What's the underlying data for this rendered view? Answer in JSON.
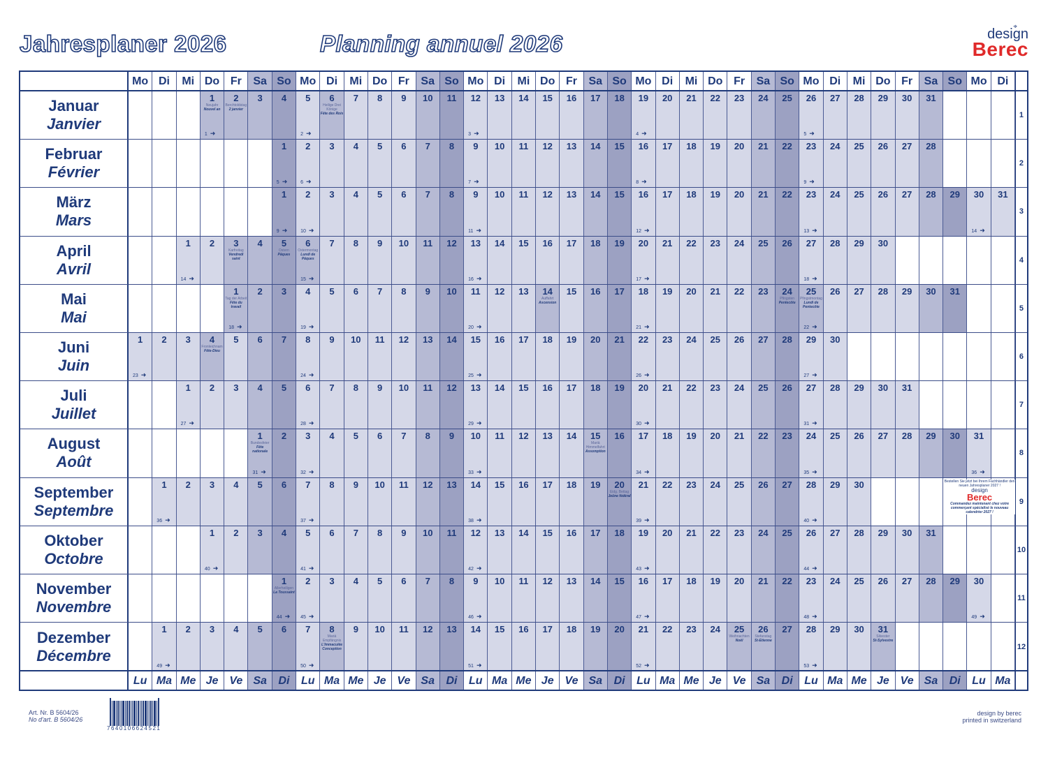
{
  "header": {
    "title_de": "Jahresplaner 2026",
    "title_fr": "Planning annuel 2026",
    "logo_design": "design",
    "logo_brand": "Berec"
  },
  "colors": {
    "navy": "#1f3a7a",
    "weekday_fill": "#d5d8e8",
    "saturday_fill": "#b6bad4",
    "sunday_fill": "#9ca1c2",
    "holiday_fill": "#b6bad4",
    "brand_red": "#e02a2a"
  },
  "weekdays_de": [
    "Mo",
    "Di",
    "Mi",
    "Do",
    "Fr",
    "Sa",
    "So"
  ],
  "weekdays_fr": [
    "Lu",
    "Ma",
    "Me",
    "Je",
    "Ve",
    "Sa",
    "Di"
  ],
  "columns": 37,
  "months": [
    {
      "de": "Januar",
      "fr": "Janvier",
      "start": 3,
      "days": 31,
      "row": 1,
      "holidays": {
        "1": [
          "Neujahr",
          "Nouvel an"
        ],
        "2": [
          "Berchtoldstag",
          "2 janvier"
        ],
        "6": [
          "Heilige Drei Könige",
          "Fête des Rois"
        ]
      },
      "weeks": {
        "1": 1,
        "5": 2,
        "12": 3,
        "19": 4,
        "26": 5
      }
    },
    {
      "de": "Februar",
      "fr": "Février",
      "start": 6,
      "days": 28,
      "row": 2,
      "holidays": {},
      "weeks": {
        "1": 5,
        "2": 6,
        "9": 7,
        "16": 8,
        "23": 9
      }
    },
    {
      "de": "März",
      "fr": "Mars",
      "start": 6,
      "days": 31,
      "row": 3,
      "holidays": {},
      "weeks": {
        "1": 9,
        "2": 10,
        "9": 11,
        "16": 12,
        "23": 13,
        "30": 14
      }
    },
    {
      "de": "April",
      "fr": "Avril",
      "start": 2,
      "days": 30,
      "row": 4,
      "holidays": {
        "3": [
          "Karfreitag",
          "Vendredi saint"
        ],
        "5": [
          "Ostern",
          "Pâques"
        ],
        "6": [
          "Ostermontag",
          "Lundi de Pâques"
        ]
      },
      "weeks": {
        "1": 14,
        "6": 15,
        "13": 16,
        "20": 17,
        "27": 18
      }
    },
    {
      "de": "Mai",
      "fr": "Mai",
      "start": 4,
      "days": 31,
      "row": 5,
      "holidays": {
        "1": [
          "Tag der Arbeit",
          "Fête du travail"
        ],
        "14": [
          "Auffahrt",
          "Ascension"
        ],
        "24": [
          "Pfingsten",
          "Pentecôte"
        ],
        "25": [
          "Pfingstmontag",
          "Lundi de Pentecôte"
        ]
      },
      "weeks": {
        "1": 18,
        "4": 19,
        "11": 20,
        "18": 21,
        "25": 22
      }
    },
    {
      "de": "Juni",
      "fr": "Juin",
      "start": 0,
      "days": 30,
      "row": 6,
      "holidays": {
        "4": [
          "Fronleichnam",
          "Fête-Dieu"
        ]
      },
      "weeks": {
        "1": 23,
        "8": 24,
        "15": 25,
        "22": 26,
        "29": 27
      }
    },
    {
      "de": "Juli",
      "fr": "Juillet",
      "start": 2,
      "days": 31,
      "row": 7,
      "holidays": {},
      "weeks": {
        "1": 27,
        "6": 28,
        "13": 29,
        "20": 30,
        "27": 31
      }
    },
    {
      "de": "August",
      "fr": "Août",
      "start": 5,
      "days": 31,
      "row": 8,
      "holidays": {
        "1": [
          "Bundesfeier",
          "Fête nationale"
        ],
        "15": [
          "Mariä Himmelfahrt",
          "Assomption"
        ]
      },
      "weeks": {
        "1": 31,
        "3": 32,
        "10": 33,
        "17": 34,
        "24": 35,
        "31": 36
      }
    },
    {
      "de": "September",
      "fr": "Septembre",
      "start": 1,
      "days": 30,
      "row": 9,
      "holidays": {
        "20": [
          "Eidg. Bettag",
          "Jeûne fédéral"
        ]
      },
      "weeks": {
        "1": 36,
        "7": 37,
        "14": 38,
        "21": 39,
        "28": 40
      }
    },
    {
      "de": "Oktober",
      "fr": "Octobre",
      "start": 3,
      "days": 31,
      "row": 10,
      "holidays": {},
      "weeks": {
        "1": 40,
        "5": 41,
        "12": 42,
        "19": 43,
        "26": 44
      }
    },
    {
      "de": "November",
      "fr": "Novembre",
      "start": 6,
      "days": 30,
      "row": 11,
      "holidays": {
        "1": [
          "Allerheiligen",
          "La Toussaint"
        ]
      },
      "weeks": {
        "1": 44,
        "2": 45,
        "9": 46,
        "16": 47,
        "23": 48,
        "30": 49
      }
    },
    {
      "de": "Dezember",
      "fr": "Décembre",
      "start": 1,
      "days": 31,
      "row": 12,
      "holidays": {
        "8": [
          "Mariä Empfängnis",
          "L'Immaculée Conception"
        ],
        "25": [
          "Weihnachten",
          "Noël"
        ],
        "26": [
          "Stefanstag",
          "St-Etienne"
        ],
        "31": [
          "Silvester",
          "St-Sylvestre"
        ]
      },
      "weeks": {
        "1": 49,
        "7": 50,
        "14": 51,
        "21": 52,
        "28": 53
      }
    }
  ],
  "ad": {
    "de": "Bestellen Sie jetzt bei Ihrem Fachhändler den neuen Jahresplaner 2027 !",
    "logo_design": "design",
    "logo_brand": "Berec",
    "fr": "Commandez maintenant chez votre commerçant spécialisé le nouveau calendrier 2027 !"
  },
  "footer": {
    "art_de": "Art. Nr. B 5604/26",
    "art_fr": "No d'art. B 5604/26",
    "barcode_number": "7640106624521",
    "credit_1": "design by berec",
    "credit_2": "printed in switzerland"
  }
}
